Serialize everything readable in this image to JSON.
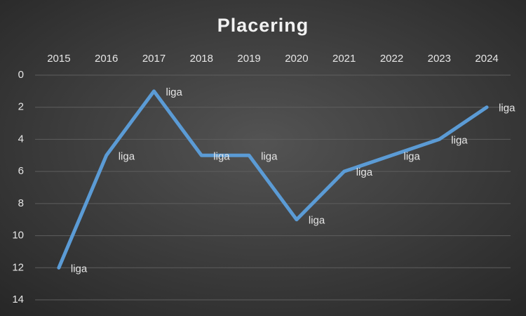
{
  "chart_data": {
    "type": "line",
    "title": "Placering",
    "categories": [
      "2015",
      "2016",
      "2017",
      "2018",
      "2019",
      "2020",
      "2021",
      "2022",
      "2023",
      "2024"
    ],
    "series": [
      {
        "name": "liga",
        "color": "#5b9bd5",
        "values": [
          12,
          5,
          1,
          5,
          5,
          9,
          6,
          5,
          4,
          2
        ]
      }
    ],
    "point_labels": [
      "liga",
      "liga",
      "liga",
      "liga",
      "liga",
      "liga",
      "liga",
      "liga",
      "liga",
      "liga"
    ],
    "ylim": [
      0,
      14
    ],
    "yticks": [
      0,
      2,
      4,
      6,
      8,
      10,
      12,
      14
    ],
    "y_reversed": true,
    "grid": true
  }
}
